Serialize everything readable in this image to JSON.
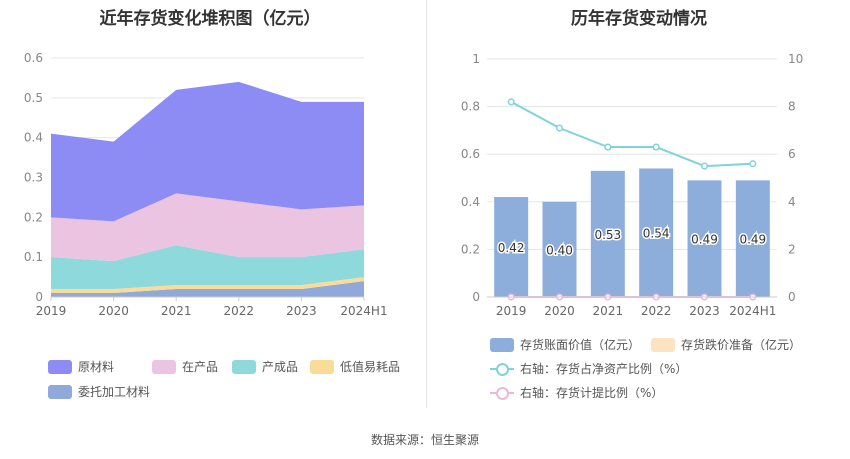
{
  "left_chart": {
    "title": "近年存货变化堆积图（亿元）"
  },
  "right_chart": {
    "title": "历年存货变动情况"
  },
  "source": "数据来源：恒生聚源",
  "chart_data": [
    {
      "type": "area",
      "stacked": true,
      "title": "近年存货变化堆积图（亿元）",
      "categories": [
        "2019",
        "2020",
        "2021",
        "2022",
        "2023",
        "2024H1"
      ],
      "y_ticks": [
        "0",
        "0.1",
        "0.2",
        "0.3",
        "0.4",
        "0.5",
        "0.6"
      ],
      "ylim": [
        0,
        0.6
      ],
      "grid": true,
      "legend_position": "bottom",
      "series": [
        {
          "name": "委托加工材料",
          "color": "#8FA9DB",
          "values": [
            0.01,
            0.01,
            0.02,
            0.02,
            0.02,
            0.04
          ]
        },
        {
          "name": "低值易耗品",
          "color": "#FBDB98",
          "values": [
            0.01,
            0.01,
            0.01,
            0.01,
            0.01,
            0.01
          ]
        },
        {
          "name": "产成品",
          "color": "#8ED9DB",
          "values": [
            0.08,
            0.07,
            0.1,
            0.07,
            0.07,
            0.07
          ]
        },
        {
          "name": "在产品",
          "color": "#EAC4E0",
          "values": [
            0.1,
            0.1,
            0.13,
            0.14,
            0.12,
            0.11
          ]
        },
        {
          "name": "原材料",
          "color": "#8C8CF4",
          "values": [
            0.21,
            0.2,
            0.26,
            0.3,
            0.27,
            0.26
          ]
        }
      ],
      "legend_order": [
        "原材料",
        "在产品",
        "产成品",
        "低值易耗品",
        "委托加工材料"
      ]
    },
    {
      "type": "bar",
      "title": "历年存货变动情况",
      "categories": [
        "2019",
        "2020",
        "2021",
        "2022",
        "2023",
        "2024H1"
      ],
      "y_left_ticks": [
        "0",
        "0.2",
        "0.4",
        "0.6",
        "0.8",
        "1"
      ],
      "ylim_left": [
        0,
        1
      ],
      "y_right_ticks": [
        "0",
        "2",
        "4",
        "6",
        "8",
        "10"
      ],
      "ylim_right": [
        0,
        10
      ],
      "grid": true,
      "legend_position": "bottom",
      "series": [
        {
          "name": "存货账面价值（亿元）",
          "kind": "bar",
          "axis": "left",
          "color": "#8DADDB",
          "values": [
            0.42,
            0.4,
            0.53,
            0.54,
            0.49,
            0.49
          ],
          "labels": [
            "0.42",
            "0.40",
            "0.53",
            "0.54",
            "0.49",
            "0.49"
          ]
        },
        {
          "name": "存货跌价准备（亿元）",
          "kind": "bar",
          "axis": "left",
          "color": "#FDE3C2",
          "values": [
            0,
            0,
            0,
            0,
            0,
            0
          ]
        },
        {
          "name": "右轴：存货占净资产比例（%）",
          "kind": "line",
          "axis": "right",
          "color": "#7FD3DA",
          "values": [
            8.2,
            7.1,
            6.3,
            6.3,
            5.5,
            5.6
          ]
        },
        {
          "name": "右轴：存货计提比例（%）",
          "kind": "line",
          "axis": "right",
          "color": "#EBB8DC",
          "values": [
            0,
            0,
            0,
            0,
            0,
            0
          ]
        }
      ]
    }
  ]
}
